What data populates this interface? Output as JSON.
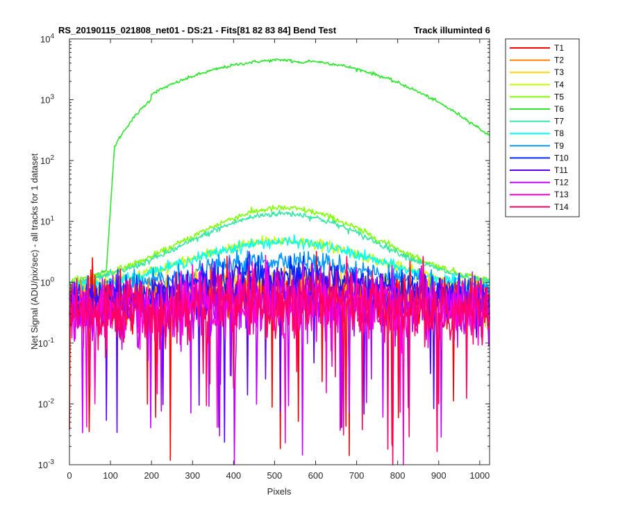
{
  "chart_data": {
    "type": "line",
    "title_left": "RS_20190115_021808_net01 - DS:21 - Fits[81  82  83  84]   Bend Test",
    "title_right": "Track illuminted 6",
    "xlabel": "Pixels",
    "ylabel": "Net Signal (ADU/pix/sec) - all tracks for 1 dataset",
    "xlim": [
      0,
      1024
    ],
    "ylim": [
      0.001,
      10000
    ],
    "yscale": "log",
    "grid": false,
    "legend_position": "outside-top-right",
    "x_ticks": [
      "0",
      "100",
      "200",
      "300",
      "400",
      "500",
      "600",
      "700",
      "800",
      "900",
      "1000"
    ],
    "y_ticks": [
      {
        "base": "10",
        "exp": "-3"
      },
      {
        "base": "10",
        "exp": "-2"
      },
      {
        "base": "10",
        "exp": "-1"
      },
      {
        "base": "10",
        "exp": "0"
      },
      {
        "base": "10",
        "exp": "1"
      },
      {
        "base": "10",
        "exp": "2"
      },
      {
        "base": "10",
        "exp": "3"
      },
      {
        "base": "10",
        "exp": "4"
      }
    ],
    "series": [
      {
        "name": "T1",
        "color": "#ff0000",
        "peak": 0.55,
        "edge": 0.35,
        "noise": 0.5
      },
      {
        "name": "T2",
        "color": "#ff7f00",
        "peak": 0.9,
        "edge": 0.4,
        "noise": 0.35
      },
      {
        "name": "T3",
        "color": "#ffd500",
        "peak": 0.9,
        "edge": 0.4,
        "noise": 0.35
      },
      {
        "name": "T4",
        "color": "#bfff00",
        "peak": 4.8,
        "edge": 0.7,
        "noise": 0.1
      },
      {
        "name": "T5",
        "color": "#7fff00",
        "peak": 16.5,
        "edge": 0.8,
        "noise": 0.06
      },
      {
        "name": "T6",
        "color": "#2be62b",
        "peak": 4500,
        "edge": 0.7,
        "noise": 0.03
      },
      {
        "name": "T7",
        "color": "#33e6a6",
        "peak": 13.5,
        "edge": 0.75,
        "noise": 0.06
      },
      {
        "name": "T8",
        "color": "#00ffff",
        "peak": 4.6,
        "edge": 0.7,
        "noise": 0.1
      },
      {
        "name": "T9",
        "color": "#0095ff",
        "peak": 2.3,
        "edge": 0.6,
        "noise": 0.2
      },
      {
        "name": "T10",
        "color": "#0022ff",
        "peak": 1.3,
        "edge": 0.5,
        "noise": 0.3
      },
      {
        "name": "T11",
        "color": "#5500ff",
        "peak": 0.75,
        "edge": 0.4,
        "noise": 0.45
      },
      {
        "name": "T12",
        "color": "#bf00ff",
        "peak": 0.5,
        "edge": 0.3,
        "noise": 0.6
      },
      {
        "name": "T13",
        "color": "#ff00d5",
        "peak": 0.45,
        "edge": 0.3,
        "noise": 0.65
      },
      {
        "name": "T14",
        "color": "#ff0066",
        "peak": 0.45,
        "edge": 0.3,
        "noise": 0.65
      }
    ]
  }
}
